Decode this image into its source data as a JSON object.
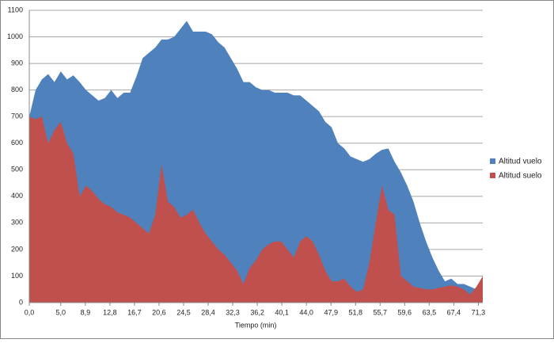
{
  "chart_data": {
    "type": "area",
    "x_label": "Tiempo (min)",
    "x": [
      0,
      1,
      2,
      3,
      4,
      5,
      6,
      7,
      8,
      9,
      10,
      11,
      12,
      13,
      14,
      15,
      16,
      17,
      18,
      19,
      20,
      21,
      22,
      23,
      24,
      25,
      26,
      27,
      28,
      29,
      30,
      31,
      32,
      33,
      34,
      35,
      36,
      37,
      38,
      39,
      40,
      41,
      42,
      43,
      44,
      45,
      46,
      47,
      48,
      49,
      50,
      51,
      52,
      53,
      54,
      55,
      56,
      57,
      58,
      59,
      60,
      61,
      62,
      63,
      64,
      65,
      66,
      67,
      68,
      69,
      70,
      71,
      72
    ],
    "series": [
      {
        "name": "Altitud vuelo",
        "color": "#4f81bd",
        "values": [
          700,
          800,
          840,
          860,
          830,
          870,
          840,
          855,
          830,
          800,
          780,
          760,
          770,
          800,
          770,
          790,
          790,
          850,
          920,
          940,
          960,
          990,
          990,
          1000,
          1030,
          1060,
          1020,
          1020,
          1020,
          1010,
          980,
          960,
          920,
          880,
          830,
          830,
          810,
          800,
          800,
          790,
          790,
          790,
          780,
          780,
          760,
          740,
          720,
          680,
          660,
          600,
          580,
          550,
          540,
          530,
          540,
          560,
          575,
          580,
          530,
          490,
          440,
          380,
          300,
          230,
          170,
          120,
          80,
          90,
          70,
          70,
          60,
          50,
          100
        ]
      },
      {
        "name": "Altitud suelo",
        "color": "#c0504d",
        "values": [
          700,
          690,
          700,
          600,
          650,
          680,
          600,
          560,
          400,
          440,
          420,
          390,
          370,
          360,
          340,
          330,
          320,
          300,
          280,
          260,
          330,
          520,
          380,
          360,
          320,
          330,
          350,
          300,
          260,
          230,
          200,
          180,
          150,
          120,
          70,
          130,
          160,
          200,
          220,
          230,
          230,
          200,
          170,
          230,
          250,
          230,
          180,
          120,
          80,
          80,
          90,
          60,
          40,
          50,
          150,
          300,
          440,
          350,
          330,
          100,
          80,
          60,
          55,
          50,
          50,
          55,
          60,
          65,
          60,
          50,
          30,
          60,
          100
        ]
      }
    ],
    "xlim": [
      0,
      72
    ],
    "xticks": [
      {
        "value": 0,
        "label": "0,0"
      },
      {
        "value": 5,
        "label": "5,0"
      },
      {
        "value": 8.9,
        "label": "8,9"
      },
      {
        "value": 12.8,
        "label": "12,8"
      },
      {
        "value": 16.7,
        "label": "16,7"
      },
      {
        "value": 20.6,
        "label": "20,6"
      },
      {
        "value": 24.5,
        "label": "24,5"
      },
      {
        "value": 28.4,
        "label": "28,4"
      },
      {
        "value": 32.3,
        "label": "32,3"
      },
      {
        "value": 36.2,
        "label": "36,2"
      },
      {
        "value": 40.1,
        "label": "40,1"
      },
      {
        "value": 44,
        "label": "44,0"
      },
      {
        "value": 47.9,
        "label": "47,9"
      },
      {
        "value": 51.8,
        "label": "51,8"
      },
      {
        "value": 55.7,
        "label": "55,7"
      },
      {
        "value": 59.6,
        "label": "59,6"
      },
      {
        "value": 63.5,
        "label": "63,5"
      },
      {
        "value": 67.4,
        "label": "67,4"
      },
      {
        "value": 71.3,
        "label": "71,3"
      }
    ],
    "ylim": [
      0,
      1100
    ],
    "yticks": [
      0,
      100,
      200,
      300,
      400,
      500,
      600,
      700,
      800,
      900,
      1000,
      1100
    ],
    "grid": true,
    "legend": "right"
  }
}
